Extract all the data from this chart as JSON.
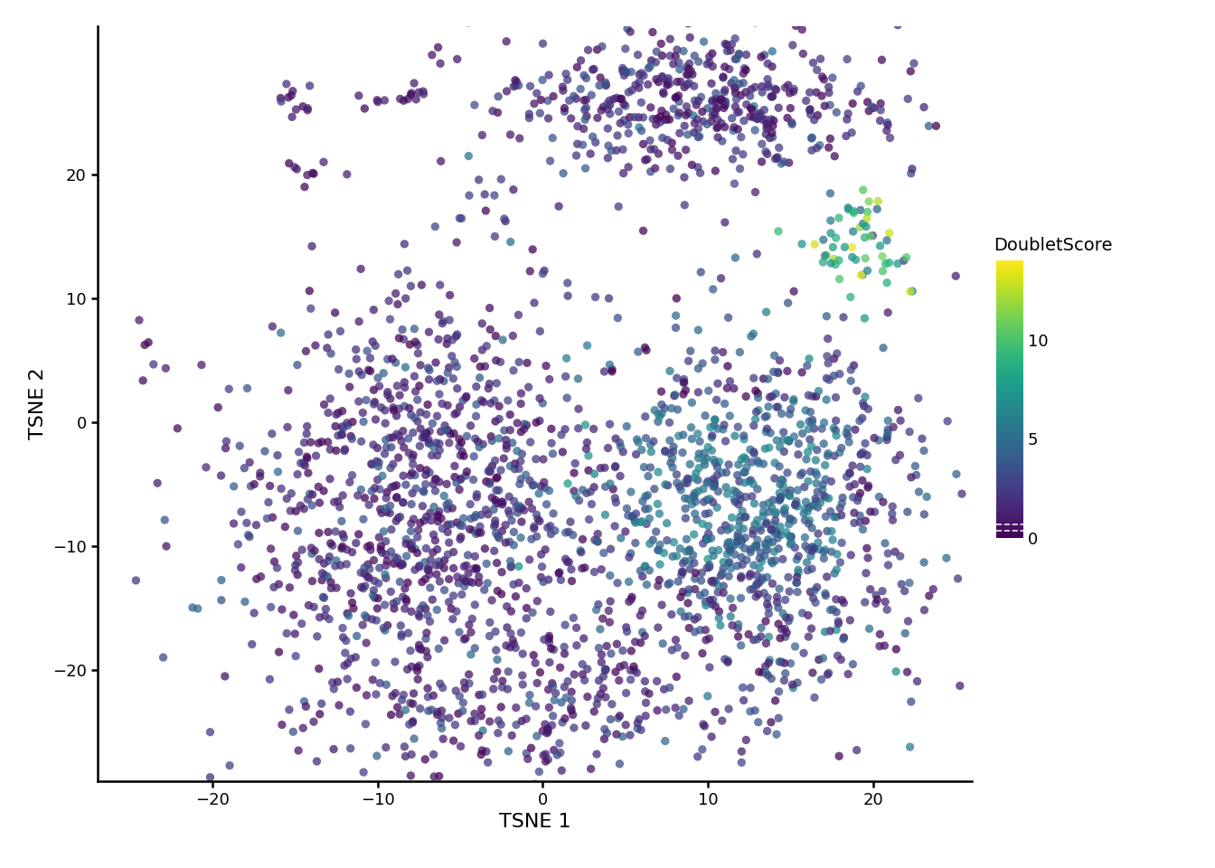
{
  "title": "",
  "xlabel": "TSNE 1",
  "ylabel": "TSNE 2",
  "xlim": [
    -27,
    26
  ],
  "ylim": [
    -29,
    32
  ],
  "xticks": [
    -20,
    -10,
    0,
    10,
    20
  ],
  "yticks": [
    -20,
    -10,
    0,
    10,
    20
  ],
  "colorbar_label": "DoubletScore",
  "colorbar_ticks": [
    0,
    5,
    10
  ],
  "vmin": 0,
  "vmax": 14,
  "cmap": "viridis",
  "point_size": 45,
  "alpha": 0.75,
  "background_color": "#ffffff"
}
